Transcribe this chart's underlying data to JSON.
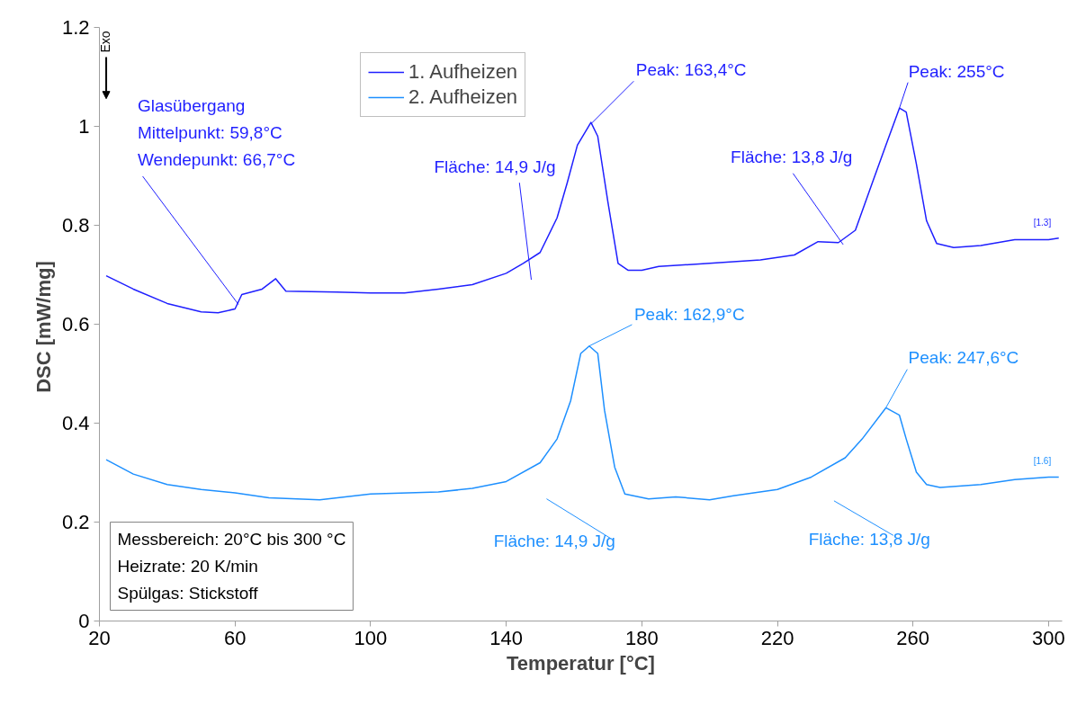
{
  "chart_data": {
    "type": "line",
    "xlabel": "Temperatur [°C]",
    "ylabel": "DSC  [mW/mg]",
    "xlim": [
      20,
      304
    ],
    "ylim": [
      0,
      1.2
    ],
    "xticks": [
      20,
      60,
      100,
      140,
      180,
      220,
      260,
      300
    ],
    "yticks": [
      0,
      0.2,
      0.4,
      0.6,
      0.8,
      1,
      1.2
    ],
    "grid": false,
    "legend": "top",
    "line_style": "solid",
    "marker": "none",
    "series": [
      {
        "name": "1. Aufheizen",
        "color": "#1f1fff",
        "x": [
          22,
          30,
          40,
          50,
          55,
          60,
          62,
          68,
          72,
          75,
          90,
          100,
          110,
          120,
          130,
          140,
          145,
          150,
          155,
          158,
          161,
          165,
          167,
          170,
          173,
          176,
          180,
          185,
          200,
          215,
          225,
          232,
          238,
          243,
          248,
          252,
          256,
          258,
          261,
          264,
          267,
          272,
          280,
          290,
          300,
          303
        ],
        "values": [
          0.698,
          0.671,
          0.642,
          0.625,
          0.623,
          0.631,
          0.66,
          0.671,
          0.692,
          0.667,
          0.665,
          0.663,
          0.663,
          0.671,
          0.68,
          0.703,
          0.723,
          0.745,
          0.815,
          0.886,
          0.962,
          1.008,
          0.98,
          0.847,
          0.723,
          0.709,
          0.709,
          0.717,
          0.723,
          0.73,
          0.74,
          0.767,
          0.765,
          0.79,
          0.886,
          0.962,
          1.037,
          1.029,
          0.924,
          0.809,
          0.763,
          0.755,
          0.759,
          0.771,
          0.771,
          0.774
        ]
      },
      {
        "name": "2. Aufheizen",
        "color": "#1e90ff",
        "x": [
          22,
          30,
          40,
          50,
          60,
          70,
          85,
          100,
          120,
          130,
          140,
          150,
          155,
          159,
          162,
          164.5,
          167,
          169,
          172,
          175,
          182,
          190,
          200,
          207,
          220,
          230,
          240,
          245,
          252,
          256,
          258,
          261,
          264,
          268,
          280,
          290,
          300,
          303
        ],
        "values": [
          0.326,
          0.297,
          0.276,
          0.266,
          0.259,
          0.249,
          0.245,
          0.257,
          0.261,
          0.268,
          0.282,
          0.32,
          0.368,
          0.445,
          0.541,
          0.556,
          0.541,
          0.426,
          0.311,
          0.257,
          0.247,
          0.251,
          0.245,
          0.253,
          0.266,
          0.291,
          0.33,
          0.368,
          0.431,
          0.416,
          0.368,
          0.301,
          0.276,
          0.27,
          0.276,
          0.286,
          0.291,
          0.291
        ]
      }
    ],
    "annotations": [
      {
        "text": "Peak: 163,4°C",
        "x": 165,
        "y": 1.005
      },
      {
        "text": "Peak: 255°C",
        "x": 256,
        "y": 1.037
      },
      {
        "text": "Peak: 162,9°C",
        "x": 164.5,
        "y": 0.556
      },
      {
        "text": "Peak: 247,6°C",
        "x": 252,
        "y": 0.431
      },
      {
        "text": "Glasübergang\nMittelpunkt: 59,8°C\nWendepunkt:  66,7°C",
        "x": 61,
        "y": 0.64
      },
      {
        "text": "[1.3]",
        "x": 303,
        "y": 0.774
      },
      {
        "text": "[1.6]",
        "x": 303,
        "y": 0.291
      },
      "Messbereich: 20°C bis 300 °C\nHeizrate: 20 K/min\nSpülgas: Stickstoff",
      "Exo",
      "Fläche: 14,9 J/g",
      "Fläche: 13,8 J/g",
      "Fläche: 14,9 J/g",
      "Fläche: 13,8 J/g"
    ]
  }
}
